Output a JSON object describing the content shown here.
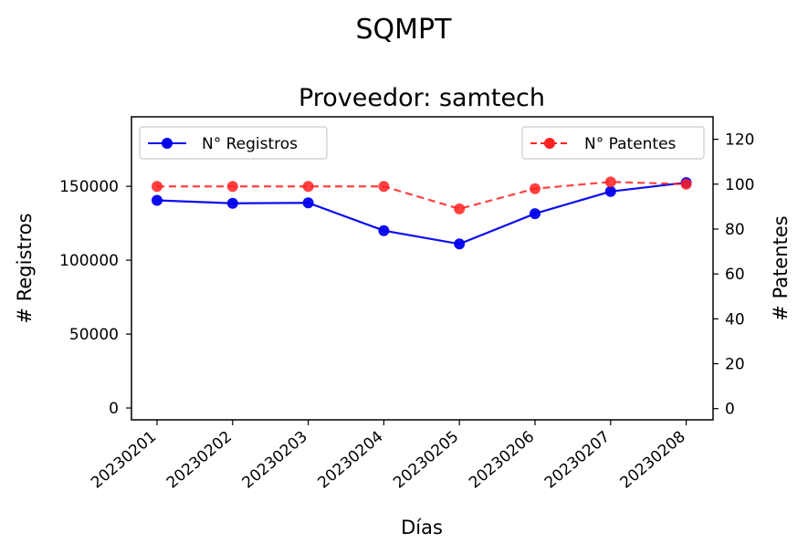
{
  "chart_data": {
    "type": "line",
    "suptitle": "SQMPT",
    "title": "Proveedor: samtech",
    "xlabel": "Días",
    "ylabel_left": "# Registros",
    "ylabel_right": "# Patentes",
    "categories": [
      "20230201",
      "20230202",
      "20230203",
      "20230204",
      "20230205",
      "20230206",
      "20230207",
      "20230208"
    ],
    "ylim_left": [
      -8000,
      197000
    ],
    "ylim_right": [
      -5,
      130
    ],
    "yticks_left": [
      0,
      50000,
      100000,
      150000
    ],
    "yticks_right": [
      0,
      20,
      40,
      60,
      80,
      100,
      120
    ],
    "grid": false,
    "series": [
      {
        "name": "N° Registros",
        "axis": "left",
        "color": "#0000ee",
        "linestyle": "solid",
        "marker": "circle",
        "values": [
          140500,
          138500,
          138800,
          120000,
          111000,
          131500,
          146500,
          152500
        ],
        "legend_position": "top-left"
      },
      {
        "name": "N° Patentes",
        "axis": "right",
        "color": "#ff2020",
        "linestyle": "dashed",
        "marker": "circle",
        "values": [
          99,
          99,
          99,
          99,
          89,
          98,
          101,
          100
        ],
        "legend_position": "top-right"
      }
    ]
  }
}
